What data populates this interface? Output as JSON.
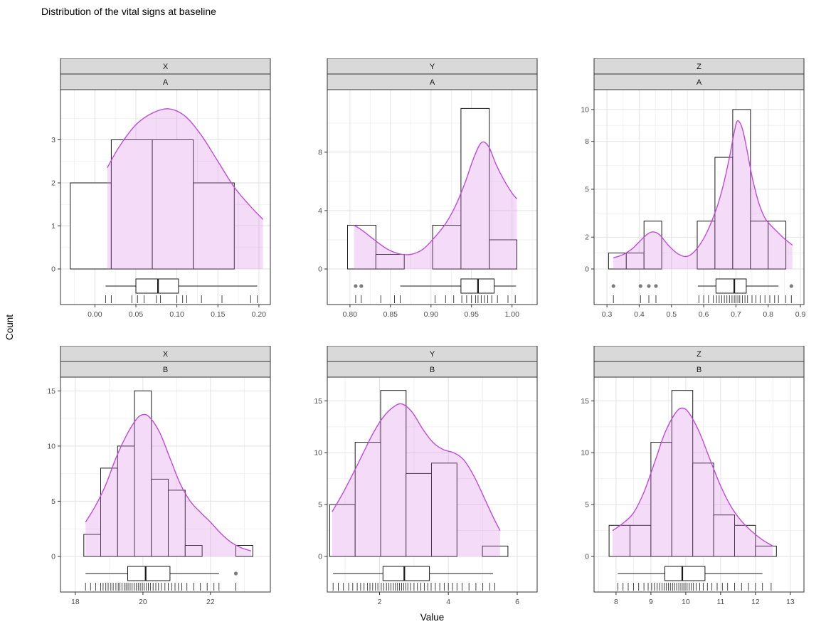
{
  "title": "Distribution of the vital signs at baseline",
  "axes": {
    "y_label": "Count",
    "x_label": "Value"
  },
  "facets": {
    "columns": [
      "X",
      "Y",
      "Z"
    ],
    "rows": [
      "A",
      "B"
    ]
  },
  "colors": {
    "density_stroke": "#BE4BDB",
    "density_fill": "rgba(214,125,230,0.28)",
    "strip_bg": "#d9d9d9",
    "strip_border": "#333333",
    "panel_border": "#333333",
    "grid_major": "#e2e2e2",
    "grid_minor": "#f0f0f0",
    "bar_fill": "#ffffff",
    "bar_stroke": "#1a1a1a",
    "box_stroke": "#1a1a1a",
    "outlier": "#7c7c7c",
    "rug": "#1a1a1a",
    "tick_label": "#4d4d4d",
    "strip_text": "#141414"
  },
  "chart_data": [
    {
      "type": "histogram+density+boxplot+rug",
      "facet_var": "X",
      "facet_group": "A",
      "x_domain": [
        -0.042,
        0.214
      ],
      "x_ticks": [
        0,
        0.05,
        0.1,
        0.15,
        0.2
      ],
      "x_tick_labels": [
        "0.00",
        "0.05",
        "0.10",
        "0.15",
        "0.20"
      ],
      "y_ticks": [
        0,
        1,
        2,
        3
      ],
      "y_tick_labels": [
        "0",
        "1",
        "2",
        "3"
      ],
      "y_max": 4.0,
      "bin_format": "[x0,x1,count]",
      "bins": [
        [
          -0.03,
          0.02,
          2
        ],
        [
          0.02,
          0.07,
          3
        ],
        [
          0.07,
          0.12,
          3
        ],
        [
          0.12,
          0.17,
          2
        ]
      ],
      "density": [
        [
          0.015,
          2.35
        ],
        [
          0.03,
          2.85
        ],
        [
          0.05,
          3.35
        ],
        [
          0.07,
          3.62
        ],
        [
          0.09,
          3.72
        ],
        [
          0.11,
          3.55
        ],
        [
          0.13,
          3.1
        ],
        [
          0.15,
          2.5
        ],
        [
          0.17,
          1.9
        ],
        [
          0.19,
          1.45
        ],
        [
          0.205,
          1.15
        ]
      ],
      "boxplot": {
        "whisker_min": 0.013,
        "q1": 0.05,
        "median": 0.077,
        "q3": 0.102,
        "whisker_max": 0.198,
        "outliers": []
      },
      "rug": [
        0.013,
        0.02,
        0.045,
        0.052,
        0.06,
        0.075,
        0.08,
        0.1,
        0.107,
        0.112,
        0.13,
        0.155,
        0.19,
        0.198
      ]
    },
    {
      "type": "histogram+density+boxplot+rug",
      "facet_var": "Y",
      "facet_group": "A",
      "x_domain": [
        0.772,
        1.031
      ],
      "x_ticks": [
        0.8,
        0.85,
        0.9,
        0.95,
        1.0
      ],
      "x_tick_labels": [
        "0.80",
        "0.85",
        "0.90",
        "0.95",
        "1.00"
      ],
      "y_ticks": [
        0,
        4,
        8
      ],
      "y_tick_labels": [
        "0",
        "4",
        "8"
      ],
      "y_max": 11.8,
      "bin_format": "[x0,x1,count]",
      "bins": [
        [
          0.797,
          0.832,
          3
        ],
        [
          0.832,
          0.867,
          1
        ],
        [
          0.902,
          0.937,
          3
        ],
        [
          0.937,
          0.972,
          11
        ],
        [
          0.972,
          1.006,
          2
        ]
      ],
      "density": [
        [
          0.805,
          3.0
        ],
        [
          0.815,
          2.65
        ],
        [
          0.83,
          2.0
        ],
        [
          0.845,
          1.4
        ],
        [
          0.86,
          1.05
        ],
        [
          0.875,
          1.0
        ],
        [
          0.89,
          1.35
        ],
        [
          0.905,
          2.2
        ],
        [
          0.918,
          3.1
        ],
        [
          0.93,
          4.3
        ],
        [
          0.942,
          5.9
        ],
        [
          0.952,
          7.5
        ],
        [
          0.962,
          8.65
        ],
        [
          0.971,
          8.4
        ],
        [
          0.98,
          7.2
        ],
        [
          0.99,
          6.1
        ],
        [
          1.0,
          5.2
        ],
        [
          1.006,
          4.8
        ]
      ],
      "boxplot": {
        "whisker_min": 0.862,
        "q1": 0.937,
        "median": 0.958,
        "q3": 0.978,
        "whisker_max": 1.005,
        "outliers": [
          0.807,
          0.814
        ]
      },
      "rug": [
        0.807,
        0.814,
        0.838,
        0.855,
        0.862,
        0.905,
        0.918,
        0.928,
        0.938,
        0.944,
        0.95,
        0.955,
        0.958,
        0.962,
        0.966,
        0.97,
        0.975,
        0.982,
        0.995,
        1.004
      ]
    },
    {
      "type": "histogram+density+boxplot+rug",
      "facet_var": "Z",
      "facet_group": "A",
      "x_domain": [
        0.26,
        0.911
      ],
      "x_ticks": [
        0.3,
        0.4,
        0.5,
        0.6,
        0.7,
        0.8,
        0.9
      ],
      "x_tick_labels": [
        "0.3",
        "0.4",
        "0.5",
        "0.6",
        "0.7",
        "0.8",
        "0.9"
      ],
      "y_ticks": [
        0,
        2,
        5,
        8,
        10
      ],
      "y_tick_labels": [
        "0",
        "2",
        "5",
        "8",
        "10"
      ],
      "y_max": 10.8,
      "bin_format": "[x0,x1,count]",
      "bins": [
        [
          0.305,
          0.36,
          1
        ],
        [
          0.36,
          0.415,
          1
        ],
        [
          0.415,
          0.47,
          3
        ],
        [
          0.58,
          0.635,
          3
        ],
        [
          0.635,
          0.69,
          7
        ],
        [
          0.69,
          0.745,
          10
        ],
        [
          0.745,
          0.8,
          3
        ],
        [
          0.8,
          0.855,
          3
        ]
      ],
      "density": [
        [
          0.32,
          0.7
        ],
        [
          0.35,
          0.9
        ],
        [
          0.38,
          1.3
        ],
        [
          0.41,
          1.9
        ],
        [
          0.435,
          2.3
        ],
        [
          0.46,
          2.2
        ],
        [
          0.49,
          1.5
        ],
        [
          0.52,
          0.95
        ],
        [
          0.55,
          0.8
        ],
        [
          0.58,
          1.3
        ],
        [
          0.61,
          2.3
        ],
        [
          0.64,
          3.8
        ],
        [
          0.66,
          5.2
        ],
        [
          0.68,
          7.0
        ],
        [
          0.695,
          8.6
        ],
        [
          0.705,
          9.3
        ],
        [
          0.72,
          8.8
        ],
        [
          0.735,
          7.4
        ],
        [
          0.75,
          5.8
        ],
        [
          0.77,
          4.2
        ],
        [
          0.79,
          3.2
        ],
        [
          0.81,
          2.7
        ],
        [
          0.83,
          2.3
        ],
        [
          0.85,
          1.9
        ],
        [
          0.875,
          1.5
        ]
      ],
      "boxplot": {
        "whisker_min": 0.582,
        "q1": 0.638,
        "median": 0.695,
        "q3": 0.732,
        "whisker_max": 0.832,
        "outliers": [
          0.32,
          0.404,
          0.43,
          0.452,
          0.872
        ]
      },
      "rug": [
        0.32,
        0.404,
        0.43,
        0.452,
        0.585,
        0.6,
        0.615,
        0.63,
        0.64,
        0.648,
        0.656,
        0.664,
        0.672,
        0.68,
        0.688,
        0.695,
        0.7,
        0.706,
        0.712,
        0.72,
        0.728,
        0.736,
        0.75,
        0.762,
        0.775,
        0.79,
        0.805,
        0.82,
        0.832,
        0.855,
        0.872
      ]
    },
    {
      "type": "histogram+density+boxplot+rug",
      "facet_var": "X",
      "facet_group": "B",
      "x_domain": [
        17.56,
        23.77
      ],
      "x_ticks": [
        18,
        20,
        22
      ],
      "x_tick_labels": [
        "18",
        "20",
        "22"
      ],
      "y_ticks": [
        0,
        5,
        10,
        15
      ],
      "y_tick_labels": [
        "0",
        "5",
        "10",
        "15"
      ],
      "y_max": 15.6,
      "bin_format": "[x0,x1,count]",
      "bins": [
        [
          18.25,
          18.75,
          2
        ],
        [
          18.75,
          19.25,
          8
        ],
        [
          19.25,
          19.75,
          10
        ],
        [
          19.75,
          20.25,
          15
        ],
        [
          20.25,
          20.75,
          7
        ],
        [
          20.75,
          21.25,
          6
        ],
        [
          21.25,
          21.75,
          1
        ],
        [
          22.75,
          23.25,
          1
        ]
      ],
      "density": [
        [
          18.3,
          3.1
        ],
        [
          18.6,
          4.6
        ],
        [
          18.9,
          6.5
        ],
        [
          19.2,
          8.9
        ],
        [
          19.5,
          10.9
        ],
        [
          19.8,
          12.4
        ],
        [
          20.0,
          12.85
        ],
        [
          20.2,
          12.6
        ],
        [
          20.5,
          11.2
        ],
        [
          20.8,
          8.9
        ],
        [
          21.1,
          6.6
        ],
        [
          21.4,
          5.0
        ],
        [
          21.7,
          4.0
        ],
        [
          22.0,
          3.1
        ],
        [
          22.3,
          2.1
        ],
        [
          22.6,
          1.3
        ],
        [
          22.9,
          0.8
        ],
        [
          23.2,
          0.5
        ]
      ],
      "boxplot": {
        "whisker_min": 18.3,
        "q1": 19.55,
        "median": 20.08,
        "q3": 20.8,
        "whisker_max": 22.25,
        "outliers": [
          22.75
        ]
      },
      "rug": [
        18.3,
        18.45,
        18.6,
        18.75,
        18.82,
        18.9,
        18.97,
        19.05,
        19.12,
        19.2,
        19.27,
        19.32,
        19.38,
        19.45,
        19.5,
        19.56,
        19.62,
        19.68,
        19.74,
        19.8,
        19.86,
        19.92,
        19.98,
        20.04,
        20.1,
        20.16,
        20.22,
        20.3,
        20.38,
        20.46,
        20.55,
        20.65,
        20.75,
        20.85,
        20.95,
        21.05,
        21.15,
        21.3,
        21.5,
        21.7,
        21.9,
        22.1,
        22.25,
        22.75
      ]
    },
    {
      "type": "histogram+density+boxplot+rug",
      "facet_var": "Y",
      "facet_group": "B",
      "x_domain": [
        0.48,
        6.58
      ],
      "x_ticks": [
        2,
        4,
        6
      ],
      "x_tick_labels": [
        "2",
        "4",
        "6"
      ],
      "y_ticks": [
        0,
        5,
        10,
        15
      ],
      "y_tick_labels": [
        "0",
        "5",
        "10",
        "15"
      ],
      "y_max": 16.6,
      "bin_format": "[x0,x1,count]",
      "bins": [
        [
          0.55,
          1.29,
          5
        ],
        [
          1.29,
          2.03,
          11
        ],
        [
          2.03,
          2.77,
          16
        ],
        [
          2.77,
          3.51,
          8
        ],
        [
          3.51,
          4.25,
          9
        ],
        [
          4.99,
          5.73,
          1
        ]
      ],
      "density": [
        [
          0.62,
          4.3
        ],
        [
          0.9,
          5.9
        ],
        [
          1.2,
          7.8
        ],
        [
          1.5,
          9.8
        ],
        [
          1.8,
          11.8
        ],
        [
          2.1,
          13.4
        ],
        [
          2.4,
          14.4
        ],
        [
          2.65,
          14.7
        ],
        [
          2.95,
          13.9
        ],
        [
          3.25,
          12.3
        ],
        [
          3.55,
          11.0
        ],
        [
          3.85,
          10.3
        ],
        [
          4.15,
          10.0
        ],
        [
          4.45,
          9.3
        ],
        [
          4.75,
          7.7
        ],
        [
          5.05,
          5.6
        ],
        [
          5.3,
          3.8
        ],
        [
          5.5,
          2.5
        ]
      ],
      "boxplot": {
        "whisker_min": 0.65,
        "q1": 2.1,
        "median": 2.72,
        "q3": 3.45,
        "whisker_max": 5.3,
        "outliers": []
      },
      "rug": [
        0.65,
        0.8,
        0.95,
        1.1,
        1.22,
        1.35,
        1.45,
        1.55,
        1.65,
        1.72,
        1.8,
        1.88,
        1.95,
        2.05,
        2.12,
        2.2,
        2.27,
        2.33,
        2.4,
        2.46,
        2.52,
        2.58,
        2.64,
        2.7,
        2.76,
        2.82,
        2.9,
        3.0,
        3.1,
        3.2,
        3.3,
        3.4,
        3.5,
        3.62,
        3.75,
        3.88,
        4.0,
        4.12,
        4.25,
        4.4,
        4.6,
        4.8,
        5.0,
        5.2,
        5.35
      ]
    },
    {
      "type": "histogram+density+boxplot+rug",
      "facet_var": "Z",
      "facet_group": "B",
      "x_domain": [
        7.37,
        13.39
      ],
      "x_ticks": [
        8,
        9,
        10,
        11,
        12,
        13
      ],
      "x_tick_labels": [
        "8",
        "9",
        "10",
        "11",
        "12",
        "13"
      ],
      "y_ticks": [
        0,
        5,
        10,
        15
      ],
      "y_tick_labels": [
        "0",
        "5",
        "10",
        "15"
      ],
      "y_max": 16.6,
      "bin_format": "[x0,x1,count]",
      "bins": [
        [
          7.8,
          8.4,
          3
        ],
        [
          8.4,
          9.0,
          3
        ],
        [
          9.0,
          9.6,
          11
        ],
        [
          9.6,
          10.2,
          16
        ],
        [
          10.2,
          10.8,
          9
        ],
        [
          10.8,
          11.4,
          4
        ],
        [
          11.4,
          12.0,
          3
        ],
        [
          12.0,
          12.6,
          1
        ]
      ],
      "density": [
        [
          7.9,
          2.5
        ],
        [
          8.2,
          3.2
        ],
        [
          8.5,
          4.2
        ],
        [
          8.8,
          6.2
        ],
        [
          9.1,
          9.0
        ],
        [
          9.4,
          11.9
        ],
        [
          9.7,
          13.8
        ],
        [
          9.9,
          14.3
        ],
        [
          10.1,
          13.8
        ],
        [
          10.4,
          11.9
        ],
        [
          10.7,
          9.3
        ],
        [
          11.0,
          6.8
        ],
        [
          11.3,
          4.8
        ],
        [
          11.6,
          3.4
        ],
        [
          11.9,
          2.4
        ],
        [
          12.2,
          1.6
        ],
        [
          12.5,
          1.0
        ]
      ],
      "boxplot": {
        "whisker_min": 8.05,
        "q1": 9.4,
        "median": 9.9,
        "q3": 10.55,
        "whisker_max": 12.2,
        "outliers": []
      },
      "rug": [
        8.05,
        8.2,
        8.35,
        8.5,
        8.65,
        8.8,
        8.92,
        9.02,
        9.1,
        9.18,
        9.25,
        9.32,
        9.38,
        9.44,
        9.5,
        9.56,
        9.62,
        9.68,
        9.74,
        9.8,
        9.86,
        9.92,
        9.98,
        10.04,
        10.1,
        10.16,
        10.22,
        10.3,
        10.4,
        10.5,
        10.62,
        10.75,
        10.9,
        11.05,
        11.2,
        11.4,
        11.6,
        11.8,
        12.0,
        12.2,
        12.45
      ]
    }
  ]
}
